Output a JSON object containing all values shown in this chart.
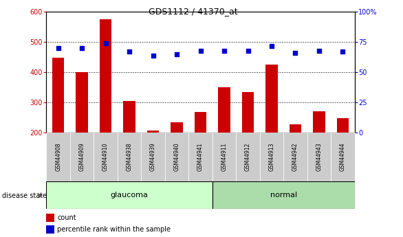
{
  "title": "GDS1112 / 41370_at",
  "categories": [
    "GSM44908",
    "GSM44909",
    "GSM44910",
    "GSM44938",
    "GSM44939",
    "GSM44940",
    "GSM44941",
    "GSM44911",
    "GSM44912",
    "GSM44913",
    "GSM44942",
    "GSM44943",
    "GSM44944"
  ],
  "count_values": [
    448,
    400,
    575,
    305,
    208,
    235,
    268,
    350,
    335,
    425,
    228,
    270,
    248
  ],
  "percentile_values": [
    70,
    70,
    74,
    67,
    64,
    65,
    68,
    68,
    68,
    72,
    66,
    68,
    67
  ],
  "group_labels": [
    "glaucoma",
    "normal"
  ],
  "group_counts": [
    7,
    6
  ],
  "ylim_left": [
    200,
    600
  ],
  "ylim_right": [
    0,
    100
  ],
  "yticks_left": [
    200,
    300,
    400,
    500,
    600
  ],
  "yticks_right": [
    0,
    25,
    50,
    75,
    100
  ],
  "bar_color": "#cc0000",
  "scatter_color": "#0000cc",
  "glaucoma_bg": "#ccffcc",
  "normal_bg": "#aaddaa",
  "label_bg": "#cccccc",
  "disease_state_label": "disease state",
  "legend_count": "count",
  "legend_percentile": "percentile rank within the sample",
  "ylabel_left_color": "#cc0000",
  "ylabel_right_color": "#0000cc"
}
